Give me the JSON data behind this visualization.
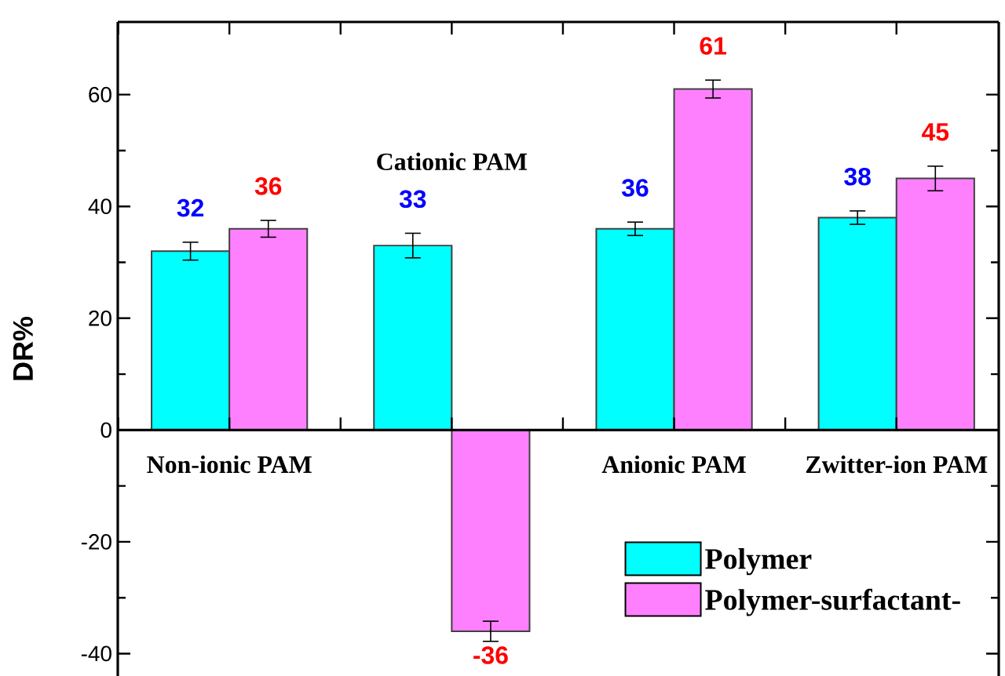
{
  "chart_data": {
    "type": "bar",
    "ylabel": "DR%",
    "categories": [
      "Non-ionic PAM",
      "Cationic PAM",
      "Anionic PAM",
      "Zwitter-ion PAM"
    ],
    "series": [
      {
        "name": "Polymer",
        "color": "#00ffff",
        "values": [
          32,
          33,
          36,
          38
        ],
        "errors": [
          1.6,
          2.2,
          1.2,
          1.2
        ]
      },
      {
        "name": "Polymer-surfactant-",
        "color": "#ff80ff",
        "values": [
          36,
          -36,
          61,
          45
        ],
        "errors": [
          1.5,
          1.8,
          1.6,
          2.2
        ]
      }
    ],
    "ylim": [
      -44,
      73
    ],
    "yticks": [
      -40,
      -20,
      0,
      20,
      40,
      60
    ],
    "data_labels": true,
    "legend": "bottom right"
  }
}
